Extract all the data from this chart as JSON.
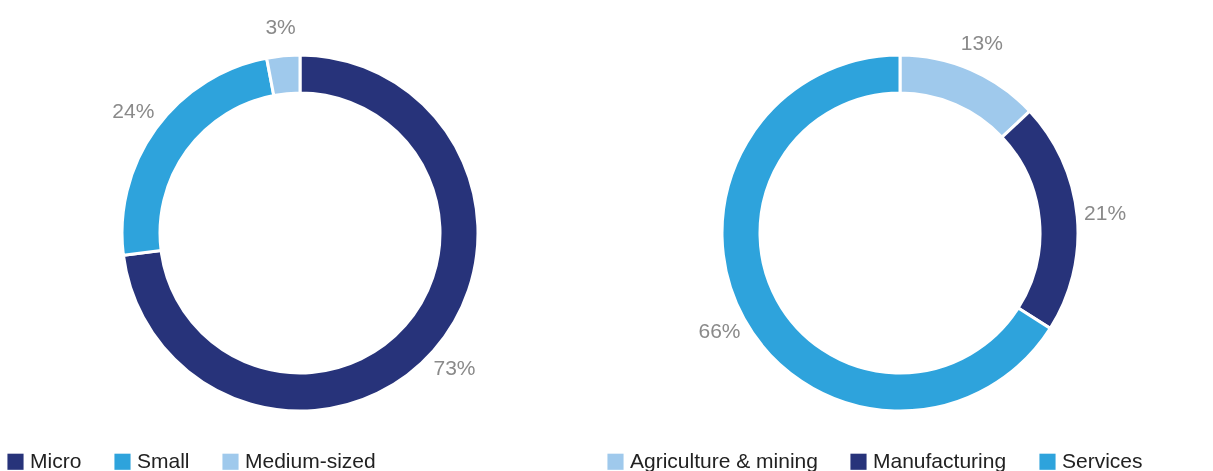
{
  "chart_data": [
    {
      "type": "donut",
      "categories": [
        "Micro",
        "Small",
        "Medium-sized"
      ],
      "values": [
        73,
        24,
        3
      ],
      "colors": [
        "#27337a",
        "#2ea3dc",
        "#9fc9ec"
      ],
      "value_labels": [
        "73%",
        "24%",
        "3%"
      ],
      "legend": "bottom left"
    },
    {
      "type": "donut",
      "categories": [
        "Agriculture & mining",
        "Manufacturing",
        "Services"
      ],
      "values": [
        13,
        21,
        66
      ],
      "colors": [
        "#9fc9ec",
        "#27337a",
        "#2ea3dc"
      ],
      "value_labels": [
        "13%",
        "21%",
        "66%"
      ],
      "legend": "bottom left"
    }
  ]
}
